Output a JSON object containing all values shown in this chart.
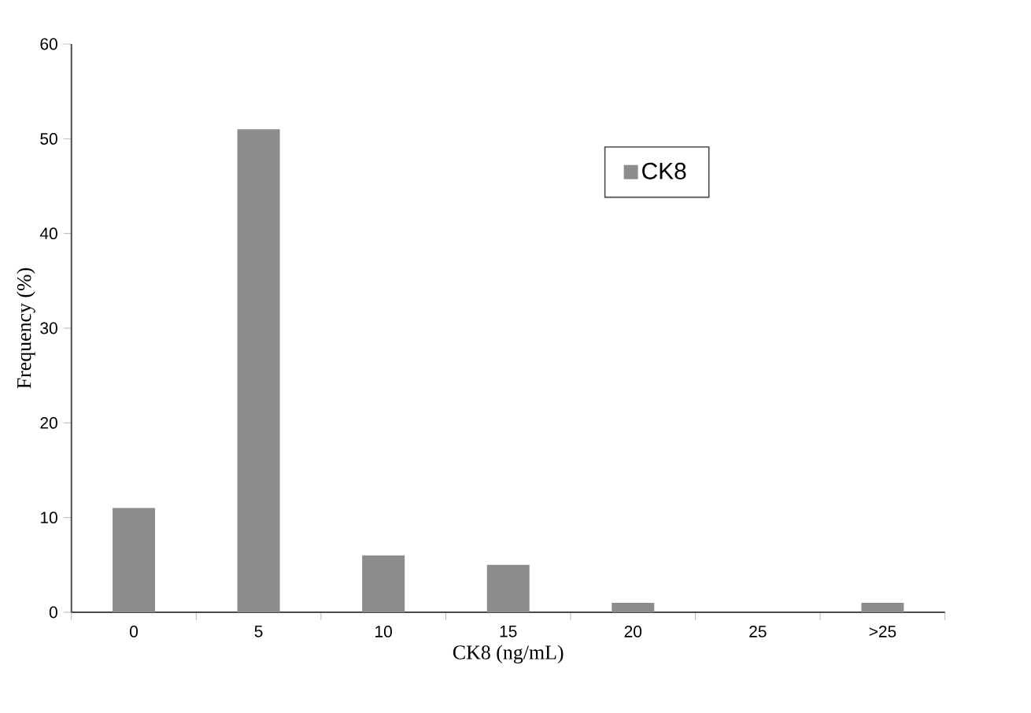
{
  "chart_data": {
    "type": "bar",
    "xlabel": "CK8 (ng/mL)",
    "ylabel": "Frequency (%)",
    "categories": [
      "0",
      "5",
      "10",
      "15",
      "20",
      "25",
      ">25"
    ],
    "series": [
      {
        "name": "CK8",
        "color": "#8c8c8c",
        "values": [
          11,
          51,
          6,
          5,
          1,
          0,
          1
        ]
      }
    ],
    "ylim": [
      0,
      60
    ],
    "yticks": [
      0,
      10,
      20,
      30,
      40,
      50,
      60
    ],
    "grid": false,
    "legend": "top right"
  }
}
